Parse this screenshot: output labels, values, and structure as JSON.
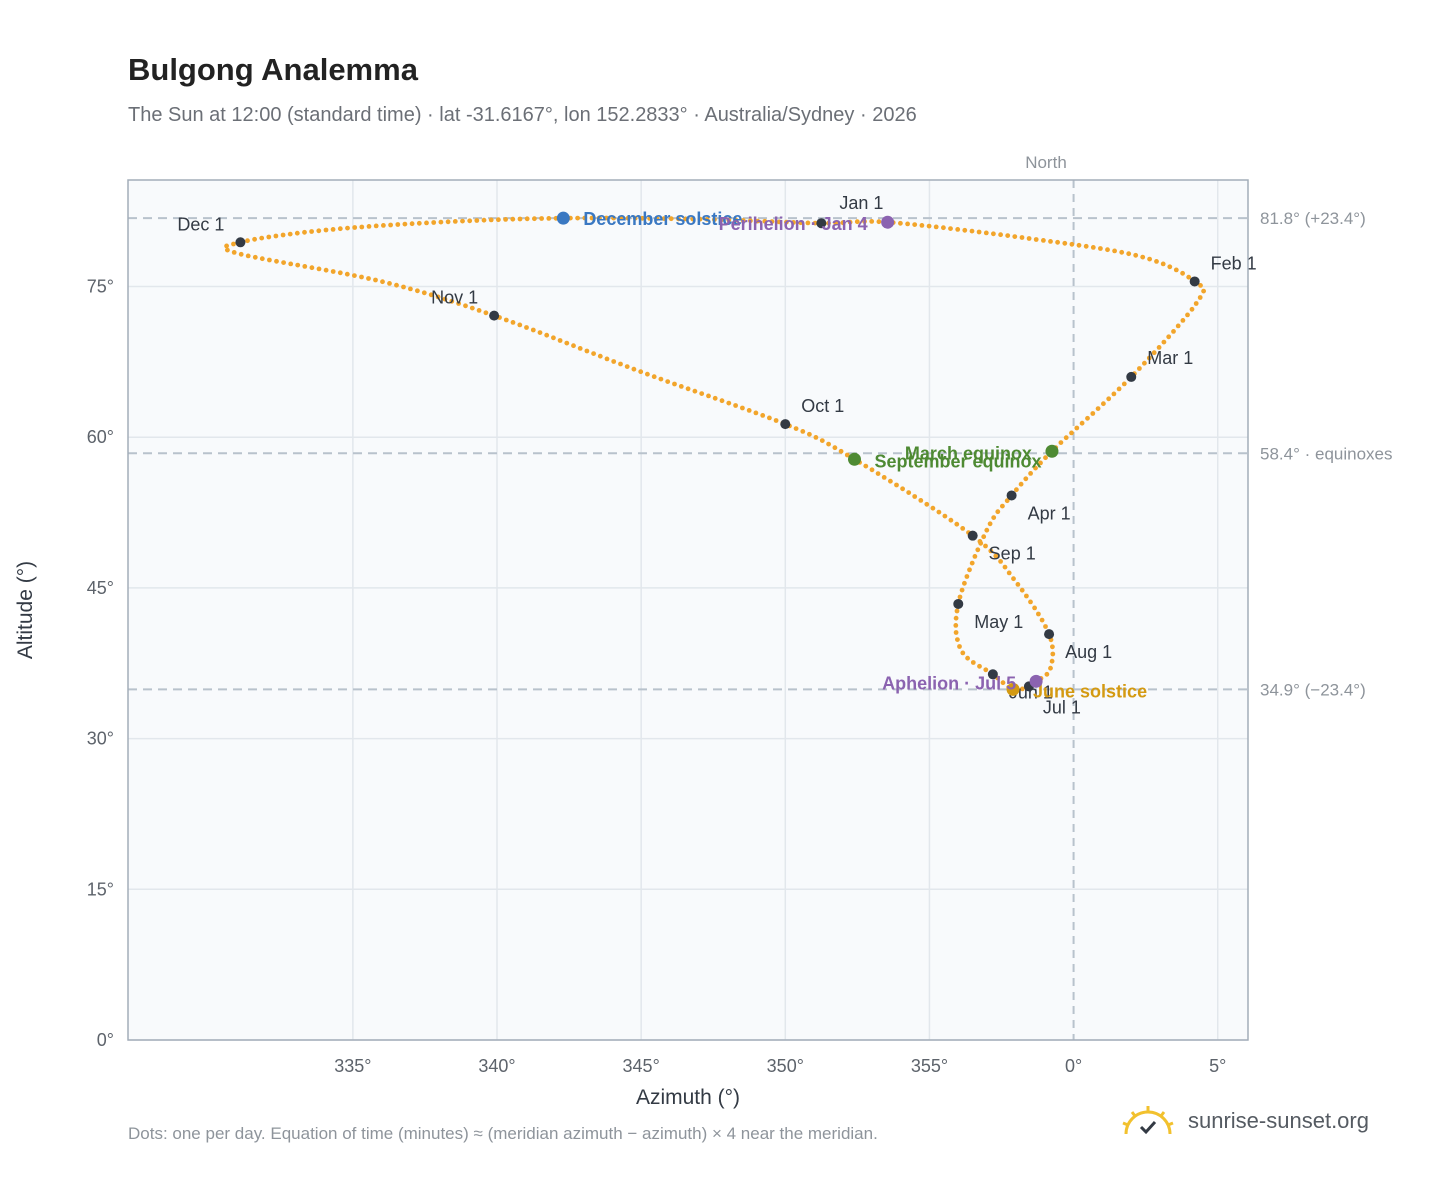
{
  "header": {
    "title": "Bulgong Analemma",
    "subtitle": "The Sun at 12:00 (standard time) · lat -31.6167°, lon 152.2833° · Australia/Sydney · 2026"
  },
  "footer": {
    "note": "Dots: one per day. Equation of time (minutes) ≈ (meridian azimuth − azimuth) × 4 near the meridian.",
    "brand": "sunrise-sunset.org"
  },
  "colors": {
    "curve": "#f2a52b",
    "month_dot": "#333a44",
    "december_solstice": "#3a78c2",
    "june_solstice": "#d49a12",
    "equinox": "#4e8a33",
    "aphelion_perihelion": "#8b63b0",
    "reference_line": "#b8c2cc",
    "plot_bg": "#f8fafc",
    "frame": "#a3adb9",
    "grid": "#e2e7ec"
  },
  "chart_data": {
    "type": "scatter",
    "xlabel": "Azimuth (°)",
    "ylabel": "Altitude (°)",
    "xlim": [
      327.2,
      6.05
    ],
    "ylim": [
      0,
      85.6
    ],
    "x_ticks": [
      {
        "value": 335,
        "label": "335°"
      },
      {
        "value": 340,
        "label": "340°"
      },
      {
        "value": 345,
        "label": "345°"
      },
      {
        "value": 350,
        "label": "350°"
      },
      {
        "value": 355,
        "label": "355°"
      },
      {
        "value": 0,
        "label": "0°"
      },
      {
        "value": 5,
        "label": "5°"
      }
    ],
    "y_ticks": [
      {
        "value": 0,
        "label": "0°"
      },
      {
        "value": 15,
        "label": "15°"
      },
      {
        "value": 30,
        "label": "30°"
      },
      {
        "value": 45,
        "label": "45°"
      },
      {
        "value": 60,
        "label": "60°"
      },
      {
        "value": 75,
        "label": "75°"
      }
    ],
    "north_line": {
      "azimuth": 0,
      "label": "North"
    },
    "reference_lines": [
      {
        "altitude": 81.8,
        "label": "81.8° (+23.4°)"
      },
      {
        "altitude": 58.4,
        "label": "58.4° · equinoxes"
      },
      {
        "altitude": 34.9,
        "label": "34.9° (−23.4°)"
      }
    ],
    "months": [
      {
        "label": "Jan 1",
        "az": 351.25,
        "alt": 81.3
      },
      {
        "label": "Feb 1",
        "az": 4.2,
        "alt": 75.5
      },
      {
        "label": "Mar 1",
        "az": 2.0,
        "alt": 66.0
      },
      {
        "label": "Apr 1",
        "az": 357.85,
        "alt": 54.2
      },
      {
        "label": "May 1",
        "az": 356.0,
        "alt": 43.4
      },
      {
        "label": "Jun 1",
        "az": 357.2,
        "alt": 36.4
      },
      {
        "label": "Jul 1",
        "az": 358.45,
        "alt": 35.2
      },
      {
        "label": "Aug 1",
        "az": 359.15,
        "alt": 40.4
      },
      {
        "label": "Sep 1",
        "az": 356.5,
        "alt": 50.2
      },
      {
        "label": "Oct 1",
        "az": 350.0,
        "alt": 61.3
      },
      {
        "label": "Nov 1",
        "az": 339.9,
        "alt": 72.1
      },
      {
        "label": "Dec 1",
        "az": 331.1,
        "alt": 79.4
      }
    ],
    "events": [
      {
        "label": "December solstice",
        "az": 342.3,
        "alt": 81.8,
        "kind": "december_solstice"
      },
      {
        "label": "Perihelion · Jan 4",
        "az": 353.55,
        "alt": 81.4,
        "kind": "aphelion_perihelion"
      },
      {
        "label": "March equinox",
        "az": 359.25,
        "alt": 58.6,
        "kind": "equinox"
      },
      {
        "label": "September equinox",
        "az": 352.4,
        "alt": 57.8,
        "kind": "equinox"
      },
      {
        "label": "June solstice",
        "az": 357.9,
        "alt": 34.9,
        "kind": "june_solstice"
      },
      {
        "label": "Aphelion · Jul 5",
        "az": 358.7,
        "alt": 35.7,
        "kind": "aphelion_perihelion"
      }
    ],
    "analemma_path": [
      {
        "az": 351.25,
        "alt": 81.3
      },
      {
        "az": 353.55,
        "alt": 81.4
      },
      {
        "az": 358.4,
        "alt": 79.8
      },
      {
        "az": 2.3,
        "alt": 78.0
      },
      {
        "az": 4.2,
        "alt": 75.5
      },
      {
        "az": 4.3,
        "alt": 73.5
      },
      {
        "az": 2.0,
        "alt": 66.0
      },
      {
        "az": 359.25,
        "alt": 58.6
      },
      {
        "az": 357.85,
        "alt": 54.2
      },
      {
        "az": 357.0,
        "alt": 50.8
      },
      {
        "az": 356.0,
        "alt": 43.4
      },
      {
        "az": 356.1,
        "alt": 38.8
      },
      {
        "az": 357.2,
        "alt": 36.4
      },
      {
        "az": 357.9,
        "alt": 34.9
      },
      {
        "az": 358.45,
        "alt": 35.2
      },
      {
        "az": 358.7,
        "alt": 35.7
      },
      {
        "az": 359.2,
        "alt": 37.0
      },
      {
        "az": 359.15,
        "alt": 40.4
      },
      {
        "az": 358.0,
        "alt": 45.6
      },
      {
        "az": 356.5,
        "alt": 50.2
      },
      {
        "az": 352.4,
        "alt": 57.8
      },
      {
        "az": 350.0,
        "alt": 61.3
      },
      {
        "az": 345.0,
        "alt": 66.5
      },
      {
        "az": 339.9,
        "alt": 72.1
      },
      {
        "az": 336.0,
        "alt": 75.5
      },
      {
        "az": 331.0,
        "alt": 78.3
      },
      {
        "az": 331.1,
        "alt": 79.4
      },
      {
        "az": 334.0,
        "alt": 80.6
      },
      {
        "az": 338.0,
        "alt": 81.4
      },
      {
        "az": 342.3,
        "alt": 81.8
      },
      {
        "az": 347.0,
        "alt": 81.7
      },
      {
        "az": 351.25,
        "alt": 81.3
      }
    ]
  }
}
